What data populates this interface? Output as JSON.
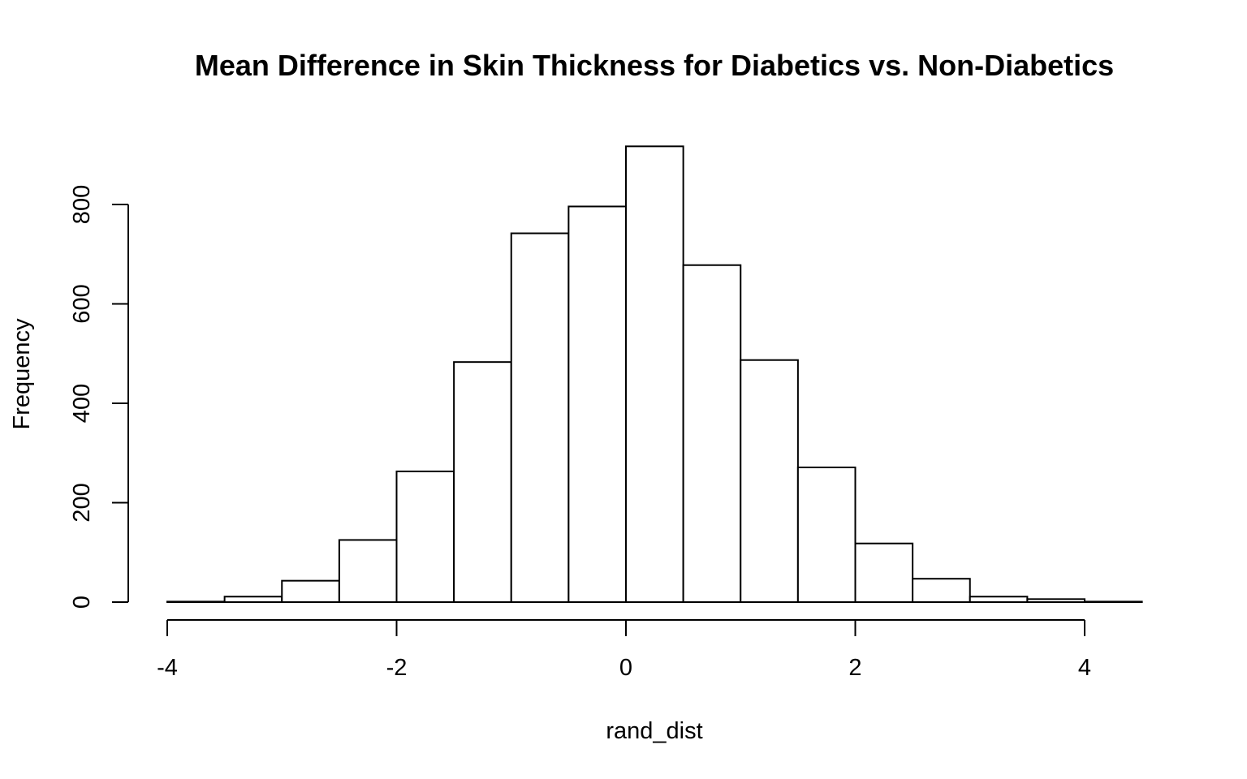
{
  "chart_data": {
    "type": "bar",
    "title": "Mean Difference in Skin Thickness for Diabetics vs. Non-Diabetics",
    "xlabel": "rand_dist",
    "ylabel": "Frequency",
    "bin_edges": [
      -4,
      -3.5,
      -3,
      -2.5,
      -2,
      -1.5,
      -1,
      -0.5,
      0,
      0.5,
      1,
      1.5,
      2,
      2.5,
      3,
      3.5,
      4,
      4.5
    ],
    "values": [
      1,
      11,
      43,
      125,
      263,
      483,
      742,
      796,
      917,
      678,
      487,
      271,
      118,
      47,
      11,
      6,
      1
    ],
    "x_ticks": [
      -4,
      -2,
      0,
      2,
      4
    ],
    "x_tick_labels": [
      "-4",
      "-2",
      "0",
      "2",
      "4"
    ],
    "y_ticks": [
      0,
      200,
      400,
      600,
      800
    ],
    "y_tick_labels": [
      "0",
      "200",
      "400",
      "600",
      "800"
    ],
    "xlim": [
      -4,
      4.5
    ],
    "ylim": [
      0,
      917
    ],
    "grid": false,
    "bar_fill": "#ffffff",
    "bar_stroke": "#000000"
  }
}
